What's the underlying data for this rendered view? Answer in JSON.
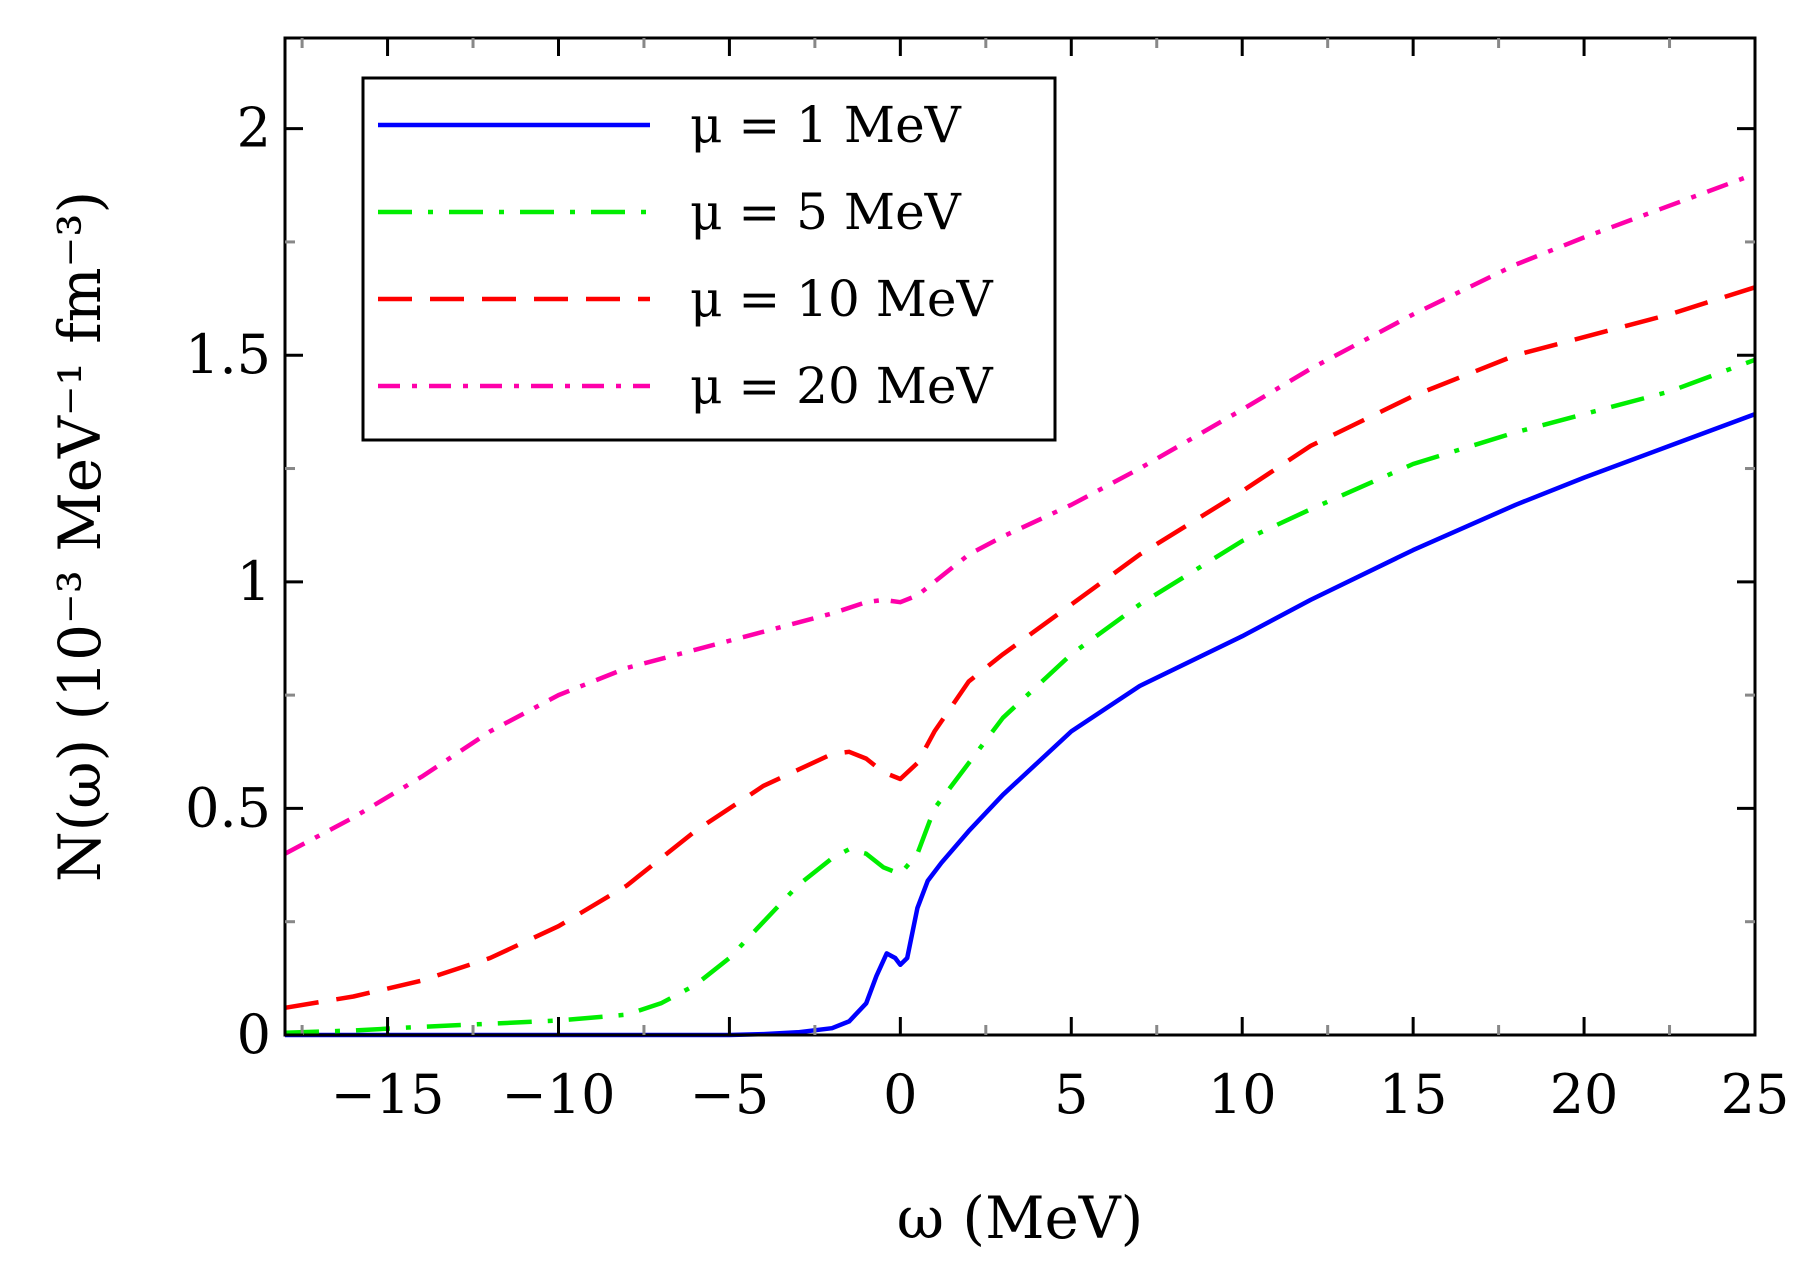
{
  "chart_data": {
    "type": "line",
    "title": "",
    "xlabel": "ω (MeV)",
    "ylabel": "N(ω) (10⁻³ MeV⁻¹ fm⁻³)",
    "xlim": [
      -18,
      25
    ],
    "ylim": [
      0,
      2.2
    ],
    "grid": false,
    "legend_position": "top-left",
    "x_ticks": [
      -15,
      -10,
      -5,
      0,
      5,
      10,
      15,
      20,
      25
    ],
    "x_tick_labels": [
      "−15",
      "−10",
      "−5",
      "0",
      "5",
      "10",
      "15",
      "20",
      "25"
    ],
    "y_ticks": [
      0,
      0.5,
      1,
      1.5,
      2
    ],
    "y_tick_labels": [
      "0",
      "0.5",
      "1",
      "1.5",
      "2"
    ],
    "series": [
      {
        "name": "μ = 1 MeV",
        "color": "#0000ff",
        "dash": "solid",
        "points": [
          [
            -18,
            0.0
          ],
          [
            -10,
            0.0
          ],
          [
            -5,
            0.0
          ],
          [
            -4,
            0.002
          ],
          [
            -3,
            0.006
          ],
          [
            -2,
            0.015
          ],
          [
            -1.5,
            0.03
          ],
          [
            -1.0,
            0.07
          ],
          [
            -0.7,
            0.13
          ],
          [
            -0.4,
            0.18
          ],
          [
            -0.15,
            0.17
          ],
          [
            0,
            0.155
          ],
          [
            0.2,
            0.17
          ],
          [
            0.5,
            0.28
          ],
          [
            0.8,
            0.34
          ],
          [
            1.2,
            0.38
          ],
          [
            2,
            0.45
          ],
          [
            3,
            0.53
          ],
          [
            4,
            0.6
          ],
          [
            5,
            0.67
          ],
          [
            7,
            0.77
          ],
          [
            10,
            0.88
          ],
          [
            12,
            0.96
          ],
          [
            15,
            1.07
          ],
          [
            18,
            1.17
          ],
          [
            20,
            1.23
          ],
          [
            22.5,
            1.3
          ],
          [
            25,
            1.37
          ]
        ]
      },
      {
        "name": "μ = 5 MeV",
        "color": "#00ee00",
        "dash": "dashdot",
        "points": [
          [
            -18,
            0.005
          ],
          [
            -16,
            0.01
          ],
          [
            -14,
            0.018
          ],
          [
            -12,
            0.025
          ],
          [
            -10,
            0.032
          ],
          [
            -8,
            0.045
          ],
          [
            -7,
            0.07
          ],
          [
            -6,
            0.11
          ],
          [
            -5,
            0.17
          ],
          [
            -4,
            0.25
          ],
          [
            -3,
            0.33
          ],
          [
            -2,
            0.39
          ],
          [
            -1.5,
            0.41
          ],
          [
            -1,
            0.4
          ],
          [
            -0.5,
            0.37
          ],
          [
            0,
            0.355
          ],
          [
            0.5,
            0.4
          ],
          [
            1,
            0.5
          ],
          [
            2,
            0.6
          ],
          [
            3,
            0.7
          ],
          [
            5,
            0.84
          ],
          [
            7,
            0.95
          ],
          [
            10,
            1.09
          ],
          [
            12,
            1.16
          ],
          [
            15,
            1.26
          ],
          [
            18,
            1.33
          ],
          [
            20,
            1.37
          ],
          [
            22.5,
            1.42
          ],
          [
            25,
            1.49
          ]
        ]
      },
      {
        "name": "μ = 10 MeV",
        "color": "#ff0000",
        "dash": "dashed",
        "points": [
          [
            -18,
            0.06
          ],
          [
            -16,
            0.085
          ],
          [
            -14,
            0.12
          ],
          [
            -12,
            0.17
          ],
          [
            -10,
            0.24
          ],
          [
            -8,
            0.33
          ],
          [
            -6,
            0.45
          ],
          [
            -4,
            0.55
          ],
          [
            -2,
            0.62
          ],
          [
            -1.5,
            0.625
          ],
          [
            -1,
            0.61
          ],
          [
            -0.5,
            0.58
          ],
          [
            0,
            0.565
          ],
          [
            0.5,
            0.6
          ],
          [
            1,
            0.67
          ],
          [
            2,
            0.78
          ],
          [
            3,
            0.84
          ],
          [
            5,
            0.95
          ],
          [
            7,
            1.06
          ],
          [
            10,
            1.2
          ],
          [
            12,
            1.3
          ],
          [
            15,
            1.41
          ],
          [
            18,
            1.5
          ],
          [
            20,
            1.54
          ],
          [
            22.5,
            1.59
          ],
          [
            25,
            1.65
          ]
        ]
      },
      {
        "name": "μ = 20 MeV",
        "color": "#ff00aa",
        "dash": "dashdotted-fine",
        "points": [
          [
            -18,
            0.4
          ],
          [
            -16,
            0.48
          ],
          [
            -14,
            0.57
          ],
          [
            -12,
            0.67
          ],
          [
            -10,
            0.75
          ],
          [
            -8,
            0.81
          ],
          [
            -6,
            0.85
          ],
          [
            -4,
            0.89
          ],
          [
            -2,
            0.93
          ],
          [
            -1,
            0.955
          ],
          [
            -0.5,
            0.96
          ],
          [
            0,
            0.955
          ],
          [
            0.5,
            0.97
          ],
          [
            1,
            1.0
          ],
          [
            2,
            1.06
          ],
          [
            3,
            1.1
          ],
          [
            5,
            1.17
          ],
          [
            7,
            1.25
          ],
          [
            10,
            1.38
          ],
          [
            12,
            1.47
          ],
          [
            15,
            1.59
          ],
          [
            18,
            1.7
          ],
          [
            20,
            1.76
          ],
          [
            22.5,
            1.83
          ],
          [
            25,
            1.9
          ]
        ]
      }
    ],
    "legend": [
      {
        "label": "μ = 1 MeV",
        "color": "#0000ff"
      },
      {
        "label": "μ = 5 MeV",
        "color": "#00ee00"
      },
      {
        "label": "μ = 10 MeV",
        "color": "#ff0000"
      },
      {
        "label": "μ = 20 MeV",
        "color": "#ff00aa"
      }
    ]
  }
}
